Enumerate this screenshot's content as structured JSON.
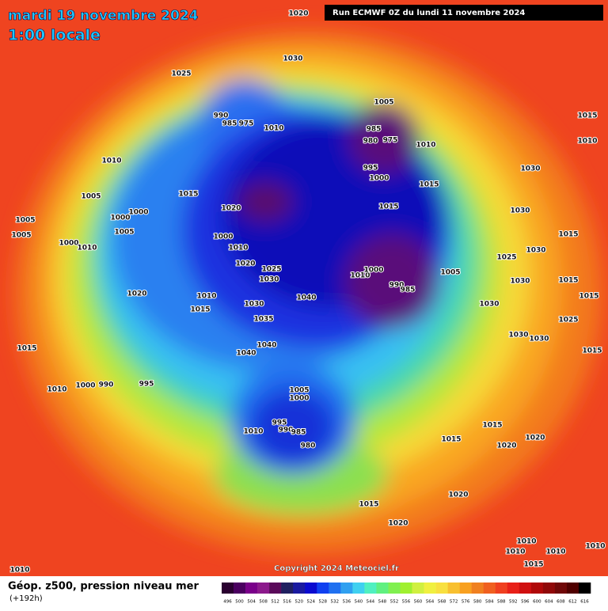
{
  "header": {
    "title": "mardi 19 novembre 2024",
    "subtitle": "1:00 locale",
    "run": "Run ECMWF 0Z du lundi 11 novembre 2024"
  },
  "footer": {
    "copyright": "Copyright 2024 Meteociel.fr",
    "field": "Géop. z500, pression niveau mer",
    "lead": "(+192h)"
  },
  "colorbar": {
    "labels": [
      496,
      500,
      504,
      508,
      512,
      516,
      520,
      524,
      528,
      532,
      536,
      540,
      544,
      548,
      552,
      556,
      560,
      564,
      568,
      572,
      576,
      580,
      584,
      588,
      592,
      596,
      600,
      604,
      608,
      612,
      616
    ],
    "colors": [
      "#2a0030",
      "#4b0060",
      "#7a008a",
      "#8c1a8c",
      "#5a0a5a",
      "#202060",
      "#1a1aa0",
      "#0a0ad0",
      "#1040f0",
      "#2070f0",
      "#30a0f0",
      "#40d0f0",
      "#50f0c0",
      "#60f080",
      "#80f050",
      "#a0f030",
      "#d0f040",
      "#f0f040",
      "#f8e040",
      "#f8c030",
      "#f8a020",
      "#f08020",
      "#f06020",
      "#f04020",
      "#e82018",
      "#d01010",
      "#b00808",
      "#900808",
      "#700808",
      "#500000",
      "#000000"
    ]
  },
  "isobar_labels": [
    "1020",
    "1030",
    "1025",
    "1005",
    "1015",
    "1010",
    "990",
    "985",
    "975",
    "1010",
    "985",
    "980",
    "975",
    "1010",
    "1010",
    "995",
    "1000",
    "1015",
    "1030",
    "1015",
    "1005",
    "1020",
    "1015",
    "1030",
    "1005",
    "1000",
    "1000",
    "1005",
    "1005",
    "1000",
    "1015",
    "1000",
    "1010",
    "1010",
    "1025",
    "1030",
    "1020",
    "1025",
    "1010",
    "1000",
    "1005",
    "990",
    "985",
    "1030",
    "1030",
    "1015",
    "1020",
    "1010",
    "1040",
    "1030",
    "1015",
    "1030",
    "1015",
    "1035",
    "1025",
    "1030",
    "1030",
    "1040",
    "1015",
    "1040",
    "1015",
    "995",
    "1010",
    "1000",
    "990",
    "1005",
    "1000",
    "1015",
    "995",
    "990",
    "985",
    "1010",
    "980",
    "1015",
    "1020",
    "1020",
    "1020",
    "1015",
    "1020",
    "1010",
    "1010",
    "1010",
    "1010",
    "1015",
    "1010"
  ]
}
